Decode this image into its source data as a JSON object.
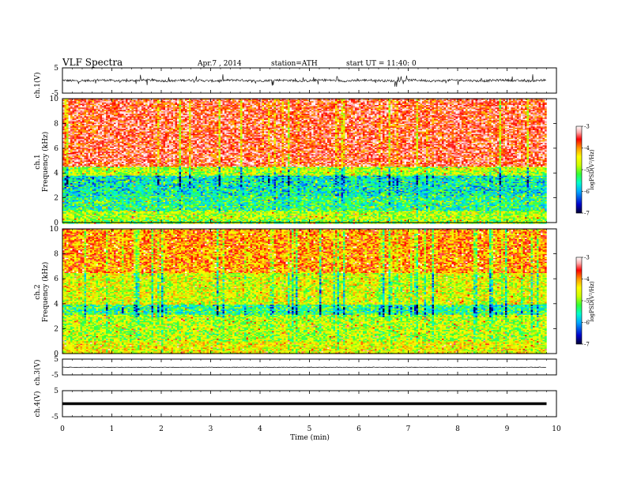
{
  "header": {
    "title": "VLF  Spectra",
    "date": "Apr.7  , 2014",
    "station": "station=ATH",
    "start": "start  UT =   11:40: 0"
  },
  "chart_data": [
    {
      "type": "line",
      "panel": "ch1-waveform",
      "ylabel": "ch.1(V)",
      "ylim": [
        -5,
        5
      ],
      "yticks": [
        "5",
        "-5"
      ],
      "x_range_min": [
        0,
        10
      ],
      "data_end_min": 9.8,
      "series": [
        {
          "values_summary": "noisy waveform centred near 0 V, spikes to about +3/-3 V"
        }
      ]
    },
    {
      "type": "heatmap",
      "panel": "ch1-spectrogram",
      "ylabel_channel": "ch.1",
      "ylabel": "Frequency  (kHz)",
      "ylim": [
        0,
        10
      ],
      "yticks": [
        "0",
        "2",
        "4",
        "6",
        "8",
        "10"
      ],
      "colorbar": {
        "label": "logPSD(V²/Hz)",
        "range": [
          -7,
          -3
        ],
        "ticks": [
          "-3",
          "-4",
          "-5",
          "-6",
          "-7"
        ],
        "colors": [
          "#000033",
          "#0000cc",
          "#00aaff",
          "#00ffcc",
          "#33ff33",
          "#ccff00",
          "#ffff00",
          "#ff9900",
          "#ff0000",
          "#ffaaaa",
          "#ffffff"
        ]
      },
      "bands": [
        {
          "from_khz": 4.5,
          "to_khz": 10,
          "logpsd": -3.7
        },
        {
          "from_khz": 3.8,
          "to_khz": 4.5,
          "logpsd": -5.0
        },
        {
          "from_khz": 2.2,
          "to_khz": 3.8,
          "logpsd": -5.8
        },
        {
          "from_khz": 1.0,
          "to_khz": 2.2,
          "logpsd": -5.6
        },
        {
          "from_khz": 0.3,
          "to_khz": 1.0,
          "logpsd": -5.0
        },
        {
          "from_khz": 0.0,
          "to_khz": 0.3,
          "logpsd": -5.2
        }
      ]
    },
    {
      "type": "heatmap",
      "panel": "ch2-spectrogram",
      "ylabel_channel": "ch.2",
      "ylabel": "Frequency  (kHz)",
      "ylim": [
        0,
        10
      ],
      "yticks": [
        "0",
        "2",
        "4",
        "6",
        "8",
        "10"
      ],
      "colorbar": {
        "label": "logPSD(V²/Hz)",
        "range": [
          -7,
          -3
        ],
        "ticks": [
          "-3",
          "-4",
          "-5",
          "-6",
          "-7"
        ]
      },
      "bands": [
        {
          "from_khz": 6.5,
          "to_khz": 10,
          "logpsd": -4.2
        },
        {
          "from_khz": 4.0,
          "to_khz": 6.5,
          "logpsd": -4.8
        },
        {
          "from_khz": 3.2,
          "to_khz": 4.0,
          "logpsd": -5.6
        },
        {
          "from_khz": 1.0,
          "to_khz": 3.2,
          "logpsd": -5.0
        },
        {
          "from_khz": 0.0,
          "to_khz": 1.0,
          "logpsd": -4.7
        }
      ]
    },
    {
      "type": "line",
      "panel": "ch3-waveform",
      "ylabel": "ch.3(V)",
      "ylim": [
        -5,
        5
      ],
      "yticks": [
        "5",
        "-5"
      ],
      "series": [
        {
          "values_summary": "flat line at about 0 V"
        }
      ]
    },
    {
      "type": "line",
      "panel": "ch4-waveform",
      "ylabel": "ch.4(V)",
      "ylim": [
        -5,
        5
      ],
      "yticks": [
        "5",
        "-5"
      ],
      "series": [
        {
          "values_summary": "thick flat line at about 0 V"
        }
      ]
    }
  ],
  "xaxis": {
    "label": "Time  (min)",
    "ticks": [
      "0",
      "1",
      "2",
      "3",
      "4",
      "5",
      "6",
      "7",
      "8",
      "9",
      "10"
    ]
  }
}
